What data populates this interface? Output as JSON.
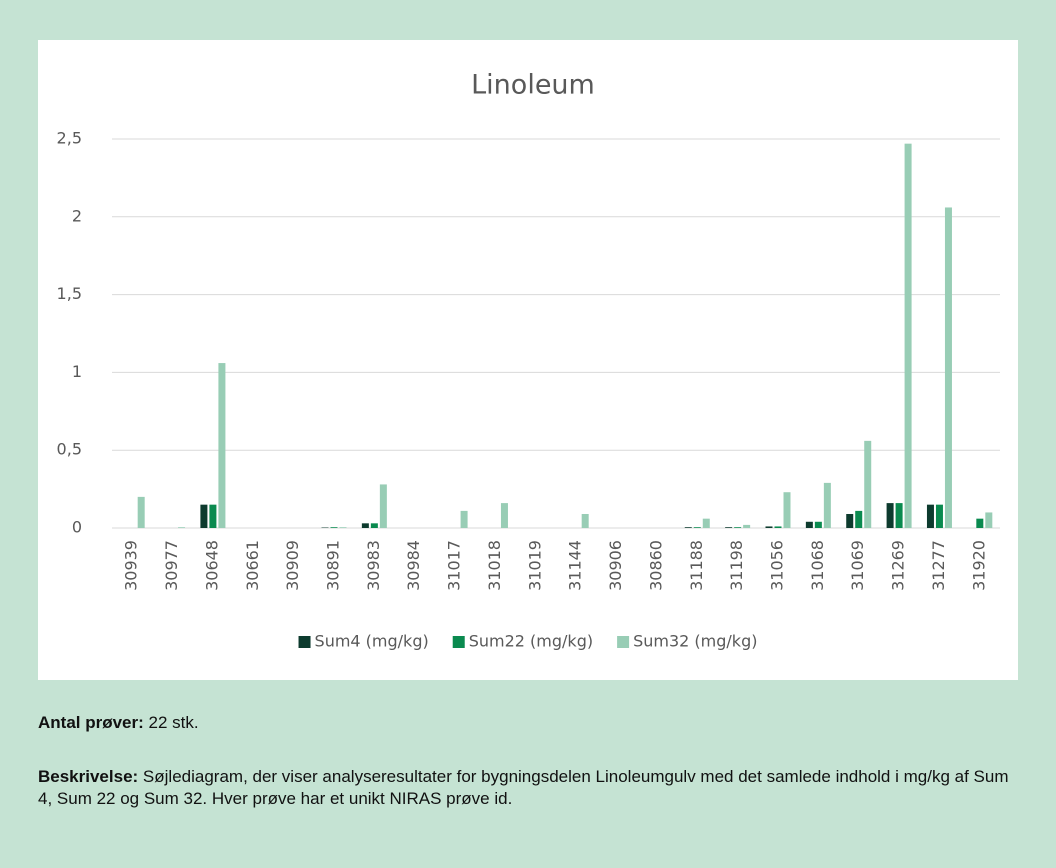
{
  "chart_data": {
    "type": "bar",
    "title": "Linoleum",
    "categories": [
      "30939",
      "30977",
      "30648",
      "30661",
      "30909",
      "30891",
      "30983",
      "30984",
      "31017",
      "31018",
      "31019",
      "31144",
      "30906",
      "30860",
      "31188",
      "31198",
      "31056",
      "31068",
      "31069",
      "31269",
      "31277",
      "31920"
    ],
    "series": [
      {
        "name": "Sum4 (mg/kg)",
        "color": "#0d3b2e",
        "values": [
          0,
          0,
          0.15,
          0,
          0,
          0.003,
          0.03,
          0,
          0,
          0,
          0,
          0,
          0,
          0,
          0.005,
          0.005,
          0.01,
          0.04,
          0.09,
          0.16,
          0.15,
          0
        ]
      },
      {
        "name": "Sum22 (mg/kg)",
        "color": "#0a8a4f",
        "values": [
          0,
          0,
          0.15,
          0,
          0,
          0.005,
          0.03,
          0,
          0,
          0,
          0,
          0,
          0,
          0,
          0.005,
          0.005,
          0.01,
          0.04,
          0.11,
          0.16,
          0.15,
          0.06
        ]
      },
      {
        "name": "Sum32 (mg/kg)",
        "color": "#98cdb5",
        "values": [
          0.2,
          0.005,
          1.06,
          0,
          0,
          0.005,
          0.28,
          0,
          0.11,
          0.16,
          0,
          0.09,
          0,
          0,
          0.06,
          0.02,
          0.23,
          0.29,
          0.56,
          2.47,
          2.06,
          0.1
        ]
      }
    ],
    "ylim": [
      0,
      2.5
    ],
    "yticks": [
      0,
      {
        "value": 0.5,
        "label": "0,5"
      },
      1,
      {
        "value": 1.5,
        "label": "1,5"
      },
      2,
      {
        "value": 2.5,
        "label": "2,5"
      }
    ],
    "grid": true,
    "legend": "bottom"
  },
  "document": {
    "count_label": "Antal prøver:",
    "count_text": "22 stk.",
    "description_label": "Beskrivelse:",
    "description_text": "Søjlediagram, der viser analyseresultater for bygningsdelen Linoleumgulv med det samlede indhold i mg/kg af Sum 4, Sum 22 og Sum 32. Hver prøve har et unikt NIRAS prøve id."
  }
}
